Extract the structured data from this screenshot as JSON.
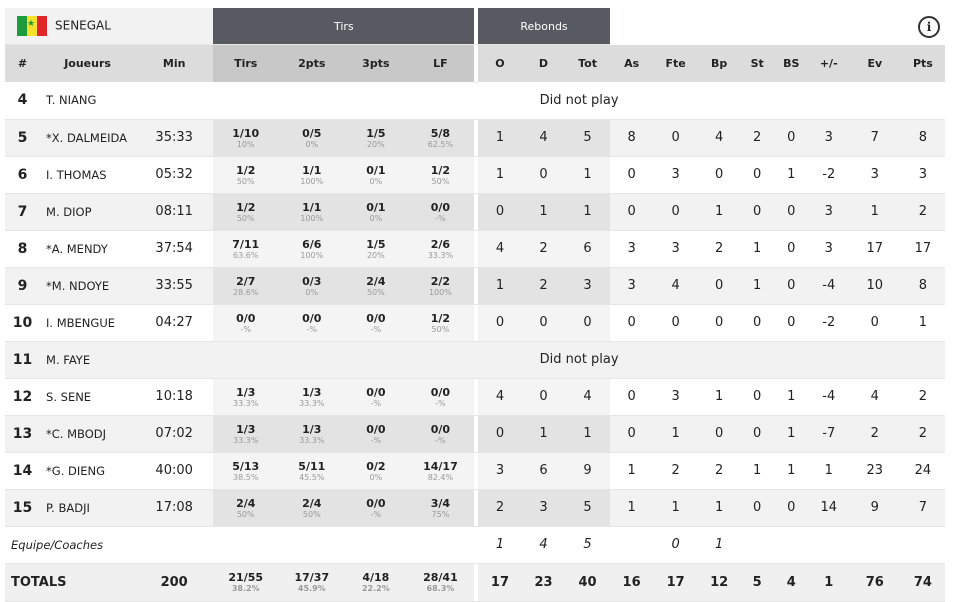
{
  "team": {
    "name": "SENEGAL",
    "flag": "senegal-flag"
  },
  "groups": {
    "tirs": "Tirs",
    "rebonds": "Rebonds"
  },
  "columns": [
    "#",
    "Joueurs",
    "Min",
    "Tirs",
    "2pts",
    "3pts",
    "LF",
    "O",
    "D",
    "Tot",
    "As",
    "Fte",
    "Bp",
    "St",
    "BS",
    "+/-",
    "Ev",
    "Pts"
  ],
  "dnp_label": "Did not play",
  "players": [
    {
      "no": "4",
      "name": "T. NIANG",
      "dnp": true
    },
    {
      "no": "5",
      "name": "*X. DALMEIDA",
      "min": "35:33",
      "shots": [
        [
          "1/10",
          "10%"
        ],
        [
          "0/5",
          "0%"
        ],
        [
          "1/5",
          "20%"
        ],
        [
          "5/8",
          "62.5%"
        ]
      ],
      "stats": [
        "1",
        "4",
        "5",
        "8",
        "0",
        "4",
        "2",
        "0",
        "3",
        "7",
        "8"
      ]
    },
    {
      "no": "6",
      "name": "I. THOMAS",
      "min": "05:32",
      "shots": [
        [
          "1/2",
          "50%"
        ],
        [
          "1/1",
          "100%"
        ],
        [
          "0/1",
          "0%"
        ],
        [
          "1/2",
          "50%"
        ]
      ],
      "stats": [
        "1",
        "0",
        "1",
        "0",
        "3",
        "0",
        "0",
        "1",
        "-2",
        "3",
        "3"
      ]
    },
    {
      "no": "7",
      "name": "M. DIOP",
      "min": "08:11",
      "shots": [
        [
          "1/2",
          "50%"
        ],
        [
          "1/1",
          "100%"
        ],
        [
          "0/1",
          "0%"
        ],
        [
          "0/0",
          "-%"
        ]
      ],
      "stats": [
        "0",
        "1",
        "1",
        "0",
        "0",
        "1",
        "0",
        "0",
        "3",
        "1",
        "2"
      ]
    },
    {
      "no": "8",
      "name": "*A. MENDY",
      "min": "37:54",
      "shots": [
        [
          "7/11",
          "63.6%"
        ],
        [
          "6/6",
          "100%"
        ],
        [
          "1/5",
          "20%"
        ],
        [
          "2/6",
          "33.3%"
        ]
      ],
      "stats": [
        "4",
        "2",
        "6",
        "3",
        "3",
        "2",
        "1",
        "0",
        "3",
        "17",
        "17"
      ]
    },
    {
      "no": "9",
      "name": "*M. NDOYE",
      "min": "33:55",
      "shots": [
        [
          "2/7",
          "28.6%"
        ],
        [
          "0/3",
          "0%"
        ],
        [
          "2/4",
          "50%"
        ],
        [
          "2/2",
          "100%"
        ]
      ],
      "stats": [
        "1",
        "2",
        "3",
        "3",
        "4",
        "0",
        "1",
        "0",
        "-4",
        "10",
        "8"
      ]
    },
    {
      "no": "10",
      "name": "I. MBENGUE",
      "min": "04:27",
      "shots": [
        [
          "0/0",
          "-%"
        ],
        [
          "0/0",
          "-%"
        ],
        [
          "0/0",
          "-%"
        ],
        [
          "1/2",
          "50%"
        ]
      ],
      "stats": [
        "0",
        "0",
        "0",
        "0",
        "0",
        "0",
        "0",
        "0",
        "-2",
        "0",
        "1"
      ]
    },
    {
      "no": "11",
      "name": "M. FAYE",
      "dnp": true
    },
    {
      "no": "12",
      "name": "S. SENE",
      "min": "10:18",
      "shots": [
        [
          "1/3",
          "33.3%"
        ],
        [
          "1/3",
          "33.3%"
        ],
        [
          "0/0",
          "-%"
        ],
        [
          "0/0",
          "-%"
        ]
      ],
      "stats": [
        "4",
        "0",
        "4",
        "0",
        "3",
        "1",
        "0",
        "1",
        "-4",
        "4",
        "2"
      ]
    },
    {
      "no": "13",
      "name": "*C. MBODJ",
      "min": "07:02",
      "shots": [
        [
          "1/3",
          "33.3%"
        ],
        [
          "1/3",
          "33.3%"
        ],
        [
          "0/0",
          "-%"
        ],
        [
          "0/0",
          "-%"
        ]
      ],
      "stats": [
        "0",
        "1",
        "1",
        "0",
        "1",
        "0",
        "0",
        "1",
        "-7",
        "2",
        "2"
      ]
    },
    {
      "no": "14",
      "name": "*G. DIENG",
      "min": "40:00",
      "shots": [
        [
          "5/13",
          "38.5%"
        ],
        [
          "5/11",
          "45.5%"
        ],
        [
          "0/2",
          "0%"
        ],
        [
          "14/17",
          "82.4%"
        ]
      ],
      "stats": [
        "3",
        "6",
        "9",
        "1",
        "2",
        "2",
        "1",
        "1",
        "1",
        "23",
        "24"
      ]
    },
    {
      "no": "15",
      "name": "P. BADJI",
      "min": "17:08",
      "shots": [
        [
          "2/4",
          "50%"
        ],
        [
          "2/4",
          "50%"
        ],
        [
          "0/0",
          "-%"
        ],
        [
          "3/4",
          "75%"
        ]
      ],
      "stats": [
        "2",
        "3",
        "5",
        "1",
        "1",
        "1",
        "0",
        "0",
        "14",
        "9",
        "7"
      ]
    }
  ],
  "team_row": {
    "label": "Equipe/Coaches",
    "stats": [
      "1",
      "4",
      "5",
      "",
      "0",
      "1",
      "",
      "",
      "",
      "",
      ""
    ]
  },
  "totals": {
    "label": "TOTALS",
    "min": "200",
    "shots": [
      [
        "21/55",
        "38.2%"
      ],
      [
        "17/37",
        "45.9%"
      ],
      [
        "4/18",
        "22.2%"
      ],
      [
        "28/41",
        "68.3%"
      ]
    ],
    "stats": [
      "17",
      "23",
      "40",
      "16",
      "17",
      "12",
      "5",
      "4",
      "1",
      "76",
      "74"
    ]
  }
}
